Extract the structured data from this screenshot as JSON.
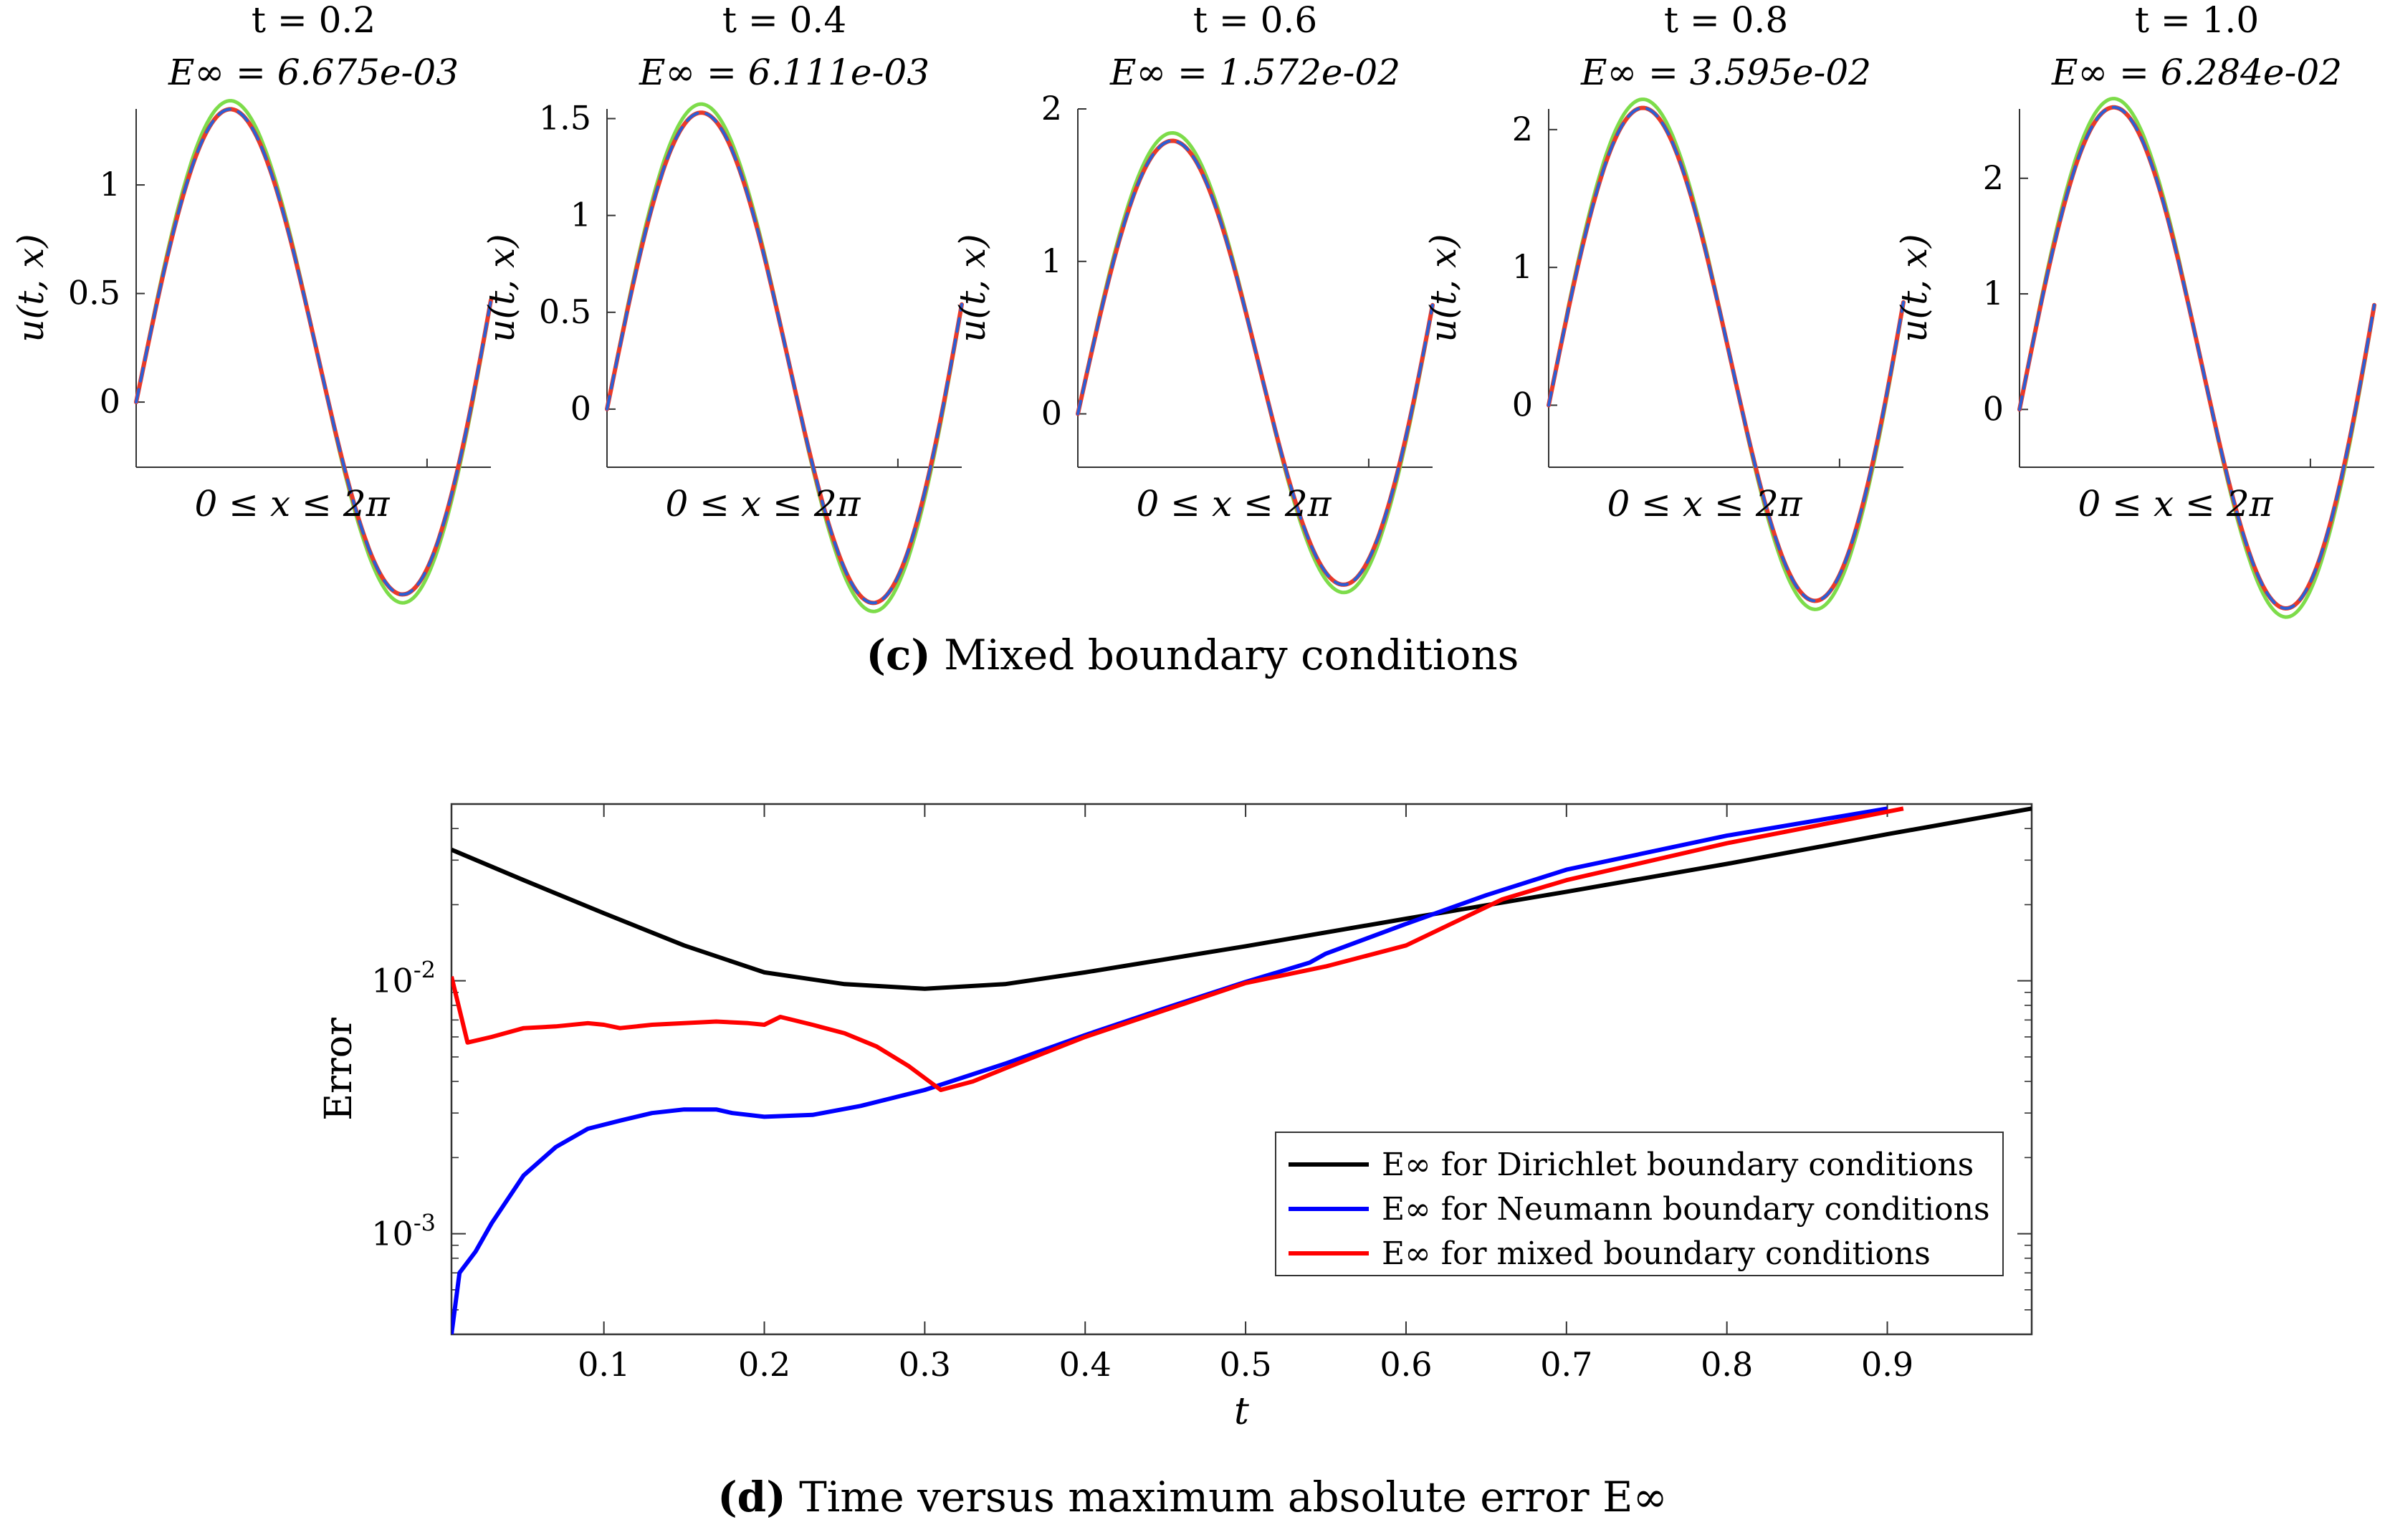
{
  "subplots": {
    "x_label": "0 ≤ x ≤ 2π",
    "y_label": "u(t, x)",
    "panels": [
      {
        "time": "t = 0.2",
        "error": "E∞ = 6.675e-03",
        "amp": 1.3,
        "ylim": [
          -0.3,
          1.35
        ],
        "yticks": [
          "0",
          "0.5",
          "1"
        ],
        "ytick_values": [
          0,
          0.5,
          1
        ]
      },
      {
        "time": "t = 0.4",
        "error": "E∞ = 6.111e-03",
        "amp": 1.475,
        "ylim": [
          -0.3,
          1.55
        ],
        "yticks": [
          "0",
          "0.5",
          "1",
          "1.5"
        ],
        "ytick_values": [
          0,
          0.5,
          1,
          1.5
        ]
      },
      {
        "time": "t = 0.6",
        "error": "E∞ = 1.572e-02",
        "amp": 1.72,
        "ylim": [
          -0.35,
          2.0
        ],
        "yticks": [
          "0",
          "1",
          "2"
        ],
        "ytick_values": [
          0,
          1,
          2
        ]
      },
      {
        "time": "t = 0.8",
        "error": "E∞ = 3.595e-02",
        "amp": 2.08,
        "ylim": [
          -0.45,
          2.15
        ],
        "yticks": [
          "0",
          "1",
          "2"
        ],
        "ytick_values": [
          0,
          1,
          2
        ]
      },
      {
        "time": "t = 1.0",
        "error": "E∞ = 6.284e-02",
        "amp": 2.52,
        "ylim": [
          -0.5,
          2.6
        ],
        "yticks": [
          "0",
          "1",
          "2"
        ],
        "ytick_values": [
          0,
          1,
          2
        ]
      }
    ]
  },
  "caption_c": {
    "label": "(c)",
    "text": " Mixed boundary conditions"
  },
  "caption_d": {
    "label": "(d)",
    "text": " Time versus maximum absolute error E∞"
  },
  "chart_data": {
    "type": "line",
    "title": "",
    "xlabel": "t",
    "ylabel": "Error",
    "xlim": [
      0.005,
      0.99
    ],
    "ylim": [
      0.0004,
      0.05
    ],
    "yscale": "log",
    "grid": false,
    "xticks": [
      "0.1",
      "0.2",
      "0.3",
      "0.4",
      "0.5",
      "0.6",
      "0.7",
      "0.8",
      "0.9"
    ],
    "xtick_values": [
      0.1,
      0.2,
      0.3,
      0.4,
      0.5,
      0.6,
      0.7,
      0.8,
      0.9
    ],
    "yticks": [
      "10-3",
      "10-2"
    ],
    "ytick_values": [
      0.001,
      0.01
    ],
    "legend_position": "bottom-right",
    "series": [
      {
        "name": "E∞ for Dirichlet boundary conditions",
        "color": "#000000",
        "x": [
          0.005,
          0.05,
          0.1,
          0.15,
          0.2,
          0.25,
          0.3,
          0.35,
          0.4,
          0.5,
          0.6,
          0.7,
          0.8,
          0.9,
          0.99
        ],
        "y": [
          0.033,
          0.025,
          0.0185,
          0.0138,
          0.0108,
          0.0097,
          0.0093,
          0.0097,
          0.0108,
          0.0137,
          0.0176,
          0.0225,
          0.029,
          0.038,
          0.048
        ]
      },
      {
        "name": "E∞ for Neumann boundary conditions",
        "color": "#0000ff",
        "x": [
          0.005,
          0.01,
          0.02,
          0.03,
          0.05,
          0.07,
          0.09,
          0.11,
          0.13,
          0.15,
          0.17,
          0.18,
          0.2,
          0.23,
          0.26,
          0.3,
          0.35,
          0.4,
          0.45,
          0.5,
          0.54,
          0.55,
          0.6,
          0.65,
          0.7,
          0.8,
          0.9
        ],
        "y": [
          0.0004,
          0.0007,
          0.00085,
          0.0011,
          0.0017,
          0.0022,
          0.0026,
          0.0028,
          0.003,
          0.0031,
          0.0031,
          0.003,
          0.0029,
          0.00295,
          0.0032,
          0.0037,
          0.0047,
          0.0061,
          0.0078,
          0.0099,
          0.0118,
          0.0128,
          0.0168,
          0.0218,
          0.0275,
          0.0375,
          0.048
        ]
      },
      {
        "name": "E∞ for mixed boundary conditions",
        "color": "#ff0000",
        "x": [
          0.005,
          0.015,
          0.03,
          0.05,
          0.07,
          0.09,
          0.1,
          0.11,
          0.13,
          0.15,
          0.17,
          0.19,
          0.2,
          0.21,
          0.23,
          0.25,
          0.27,
          0.29,
          0.31,
          0.33,
          0.35,
          0.4,
          0.5,
          0.55,
          0.6,
          0.66,
          0.7,
          0.8,
          0.91
        ],
        "y": [
          0.0104,
          0.0057,
          0.006,
          0.0065,
          0.0066,
          0.0068,
          0.0067,
          0.0065,
          0.0067,
          0.0068,
          0.0069,
          0.0068,
          0.0067,
          0.0072,
          0.0067,
          0.0062,
          0.0055,
          0.0046,
          0.0037,
          0.004,
          0.0045,
          0.006,
          0.0098,
          0.0114,
          0.0138,
          0.021,
          0.025,
          0.035,
          0.048
        ]
      }
    ]
  }
}
